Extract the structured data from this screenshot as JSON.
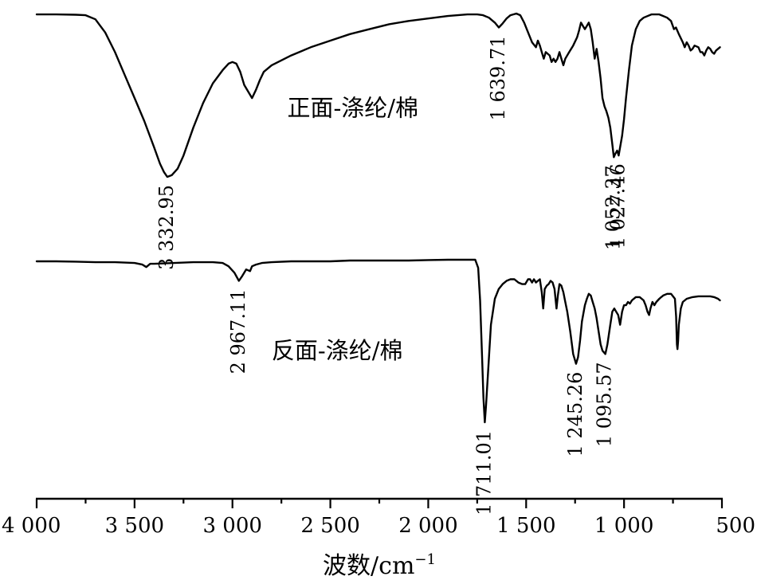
{
  "chart_data": {
    "type": "line",
    "xlabel_main": "波数/cm",
    "xlabel_sup": "−1",
    "xlim": [
      4000,
      500
    ],
    "x_reversed": true,
    "x_ticks": [
      4000,
      3500,
      3000,
      2500,
      2000,
      1500,
      1000,
      500
    ],
    "x_tick_labels": [
      "4 000",
      "3 500",
      "3 000",
      "2 500",
      "2 000",
      "1 500",
      "1 000",
      "500"
    ],
    "y_axis_shown": false,
    "grid": false,
    "series": [
      {
        "name": "正面-涤纶/棉",
        "label_at": {
          "x": 2720,
          "y": 0.42
        },
        "points": [
          [
            4000,
            0.99
          ],
          [
            3900,
            0.99
          ],
          [
            3800,
            0.988
          ],
          [
            3750,
            0.985
          ],
          [
            3700,
            0.96
          ],
          [
            3650,
            0.88
          ],
          [
            3600,
            0.76
          ],
          [
            3550,
            0.62
          ],
          [
            3500,
            0.48
          ],
          [
            3450,
            0.34
          ],
          [
            3400,
            0.18
          ],
          [
            3370,
            0.08
          ],
          [
            3350,
            0.03
          ],
          [
            3332.95,
            0.0
          ],
          [
            3310,
            0.01
          ],
          [
            3280,
            0.05
          ],
          [
            3250,
            0.13
          ],
          [
            3200,
            0.3
          ],
          [
            3150,
            0.45
          ],
          [
            3100,
            0.57
          ],
          [
            3050,
            0.65
          ],
          [
            3020,
            0.69
          ],
          [
            3000,
            0.7
          ],
          [
            2980,
            0.69
          ],
          [
            2960,
            0.64
          ],
          [
            2940,
            0.56
          ],
          [
            2920,
            0.52
          ],
          [
            2900,
            0.48
          ],
          [
            2880,
            0.53
          ],
          [
            2860,
            0.59
          ],
          [
            2840,
            0.64
          ],
          [
            2800,
            0.68
          ],
          [
            2700,
            0.74
          ],
          [
            2600,
            0.79
          ],
          [
            2500,
            0.83
          ],
          [
            2400,
            0.87
          ],
          [
            2300,
            0.9
          ],
          [
            2200,
            0.93
          ],
          [
            2100,
            0.95
          ],
          [
            2000,
            0.965
          ],
          [
            1900,
            0.98
          ],
          [
            1800,
            0.99
          ],
          [
            1750,
            0.99
          ],
          [
            1720,
            0.985
          ],
          [
            1690,
            0.97
          ],
          [
            1660,
            0.94
          ],
          [
            1639.71,
            0.91
          ],
          [
            1620,
            0.935
          ],
          [
            1600,
            0.965
          ],
          [
            1580,
            0.985
          ],
          [
            1550,
            0.995
          ],
          [
            1530,
            0.985
          ],
          [
            1510,
            0.94
          ],
          [
            1490,
            0.88
          ],
          [
            1470,
            0.82
          ],
          [
            1450,
            0.79
          ],
          [
            1440,
            0.83
          ],
          [
            1430,
            0.8
          ],
          [
            1420,
            0.76
          ],
          [
            1410,
            0.72
          ],
          [
            1400,
            0.76
          ],
          [
            1380,
            0.74
          ],
          [
            1370,
            0.7
          ],
          [
            1360,
            0.72
          ],
          [
            1350,
            0.7
          ],
          [
            1340,
            0.72
          ],
          [
            1330,
            0.76
          ],
          [
            1320,
            0.72
          ],
          [
            1310,
            0.68
          ],
          [
            1300,
            0.72
          ],
          [
            1280,
            0.76
          ],
          [
            1260,
            0.8
          ],
          [
            1240,
            0.85
          ],
          [
            1230,
            0.89
          ],
          [
            1220,
            0.94
          ],
          [
            1210,
            0.92
          ],
          [
            1200,
            0.9
          ],
          [
            1190,
            0.92
          ],
          [
            1180,
            0.94
          ],
          [
            1170,
            0.9
          ],
          [
            1160,
            0.82
          ],
          [
            1150,
            0.72
          ],
          [
            1140,
            0.78
          ],
          [
            1130,
            0.7
          ],
          [
            1120,
            0.6
          ],
          [
            1110,
            0.48
          ],
          [
            1100,
            0.43
          ],
          [
            1090,
            0.4
          ],
          [
            1080,
            0.36
          ],
          [
            1070,
            0.3
          ],
          [
            1060,
            0.2
          ],
          [
            1052.37,
            0.12
          ],
          [
            1045,
            0.14
          ],
          [
            1035,
            0.16
          ],
          [
            1027.46,
            0.13
          ],
          [
            1010,
            0.25
          ],
          [
            1000,
            0.35
          ],
          [
            990,
            0.48
          ],
          [
            975,
            0.65
          ],
          [
            960,
            0.8
          ],
          [
            940,
            0.9
          ],
          [
            920,
            0.95
          ],
          [
            900,
            0.97
          ],
          [
            860,
            0.99
          ],
          [
            820,
            0.99
          ],
          [
            800,
            0.98
          ],
          [
            780,
            0.97
          ],
          [
            760,
            0.95
          ],
          [
            745,
            0.9
          ],
          [
            735,
            0.91
          ],
          [
            720,
            0.87
          ],
          [
            700,
            0.82
          ],
          [
            690,
            0.79
          ],
          [
            680,
            0.82
          ],
          [
            670,
            0.8
          ],
          [
            660,
            0.77
          ],
          [
            650,
            0.78
          ],
          [
            640,
            0.8
          ],
          [
            620,
            0.79
          ],
          [
            610,
            0.76
          ],
          [
            600,
            0.76
          ],
          [
            590,
            0.74
          ],
          [
            580,
            0.77
          ],
          [
            570,
            0.79
          ],
          [
            560,
            0.78
          ],
          [
            550,
            0.76
          ],
          [
            540,
            0.75
          ],
          [
            530,
            0.77
          ],
          [
            520,
            0.78
          ],
          [
            510,
            0.79
          ]
        ],
        "annotations": [
          {
            "label": "3 332.95",
            "x": 3332.95
          },
          {
            "label": "1 639.71",
            "x": 1639.71
          },
          {
            "label": "1 052.37",
            "x": 1052.37
          },
          {
            "label": "1 027.46",
            "x": 1027.46
          }
        ]
      },
      {
        "name": "反面-涤纶/棉",
        "label_at": {
          "x": 2800,
          "y": 0.44
        },
        "points": [
          [
            4000,
            0.99
          ],
          [
            3900,
            0.99
          ],
          [
            3800,
            0.988
          ],
          [
            3700,
            0.985
          ],
          [
            3600,
            0.985
          ],
          [
            3500,
            0.98
          ],
          [
            3460,
            0.97
          ],
          [
            3440,
            0.955
          ],
          [
            3420,
            0.975
          ],
          [
            3400,
            0.975
          ],
          [
            3300,
            0.98
          ],
          [
            3200,
            0.985
          ],
          [
            3100,
            0.985
          ],
          [
            3050,
            0.98
          ],
          [
            3020,
            0.96
          ],
          [
            2990,
            0.92
          ],
          [
            2967.11,
            0.87
          ],
          [
            2950,
            0.9
          ],
          [
            2930,
            0.94
          ],
          [
            2910,
            0.93
          ],
          [
            2900,
            0.96
          ],
          [
            2880,
            0.97
          ],
          [
            2850,
            0.98
          ],
          [
            2800,
            0.985
          ],
          [
            2700,
            0.99
          ],
          [
            2600,
            0.99
          ],
          [
            2500,
            0.99
          ],
          [
            2400,
            0.995
          ],
          [
            2300,
            0.995
          ],
          [
            2200,
            0.995
          ],
          [
            2100,
            0.995
          ],
          [
            2000,
            0.998
          ],
          [
            1900,
            1.0
          ],
          [
            1800,
            1.0
          ],
          [
            1760,
            1.0
          ],
          [
            1745,
            0.95
          ],
          [
            1735,
            0.75
          ],
          [
            1725,
            0.4
          ],
          [
            1718,
            0.15
          ],
          [
            1711.01,
            0.0
          ],
          [
            1705,
            0.1
          ],
          [
            1695,
            0.3
          ],
          [
            1680,
            0.6
          ],
          [
            1660,
            0.76
          ],
          [
            1640,
            0.82
          ],
          [
            1620,
            0.85
          ],
          [
            1600,
            0.87
          ],
          [
            1580,
            0.88
          ],
          [
            1560,
            0.88
          ],
          [
            1540,
            0.86
          ],
          [
            1520,
            0.85
          ],
          [
            1505,
            0.85
          ],
          [
            1490,
            0.88
          ],
          [
            1480,
            0.88
          ],
          [
            1470,
            0.86
          ],
          [
            1460,
            0.88
          ],
          [
            1450,
            0.86
          ],
          [
            1440,
            0.87
          ],
          [
            1430,
            0.88
          ],
          [
            1420,
            0.8
          ],
          [
            1413,
            0.7
          ],
          [
            1405,
            0.82
          ],
          [
            1395,
            0.84
          ],
          [
            1385,
            0.85
          ],
          [
            1375,
            0.87
          ],
          [
            1365,
            0.86
          ],
          [
            1355,
            0.82
          ],
          [
            1345,
            0.7
          ],
          [
            1338,
            0.78
          ],
          [
            1330,
            0.85
          ],
          [
            1320,
            0.84
          ],
          [
            1310,
            0.8
          ],
          [
            1300,
            0.74
          ],
          [
            1290,
            0.68
          ],
          [
            1275,
            0.56
          ],
          [
            1260,
            0.42
          ],
          [
            1245.26,
            0.36
          ],
          [
            1235,
            0.4
          ],
          [
            1225,
            0.5
          ],
          [
            1215,
            0.62
          ],
          [
            1200,
            0.72
          ],
          [
            1190,
            0.76
          ],
          [
            1180,
            0.79
          ],
          [
            1170,
            0.78
          ],
          [
            1160,
            0.74
          ],
          [
            1150,
            0.7
          ],
          [
            1140,
            0.64
          ],
          [
            1130,
            0.56
          ],
          [
            1120,
            0.48
          ],
          [
            1110,
            0.44
          ],
          [
            1095.57,
            0.42
          ],
          [
            1085,
            0.48
          ],
          [
            1070,
            0.6
          ],
          [
            1060,
            0.68
          ],
          [
            1050,
            0.7
          ],
          [
            1040,
            0.68
          ],
          [
            1030,
            0.66
          ],
          [
            1020,
            0.6
          ],
          [
            1010,
            0.68
          ],
          [
            1000,
            0.72
          ],
          [
            990,
            0.72
          ],
          [
            980,
            0.74
          ],
          [
            970,
            0.73
          ],
          [
            960,
            0.75
          ],
          [
            940,
            0.77
          ],
          [
            920,
            0.77
          ],
          [
            900,
            0.75
          ],
          [
            890,
            0.72
          ],
          [
            880,
            0.68
          ],
          [
            872,
            0.66
          ],
          [
            865,
            0.7
          ],
          [
            855,
            0.74
          ],
          [
            845,
            0.72
          ],
          [
            835,
            0.74
          ],
          [
            820,
            0.76
          ],
          [
            810,
            0.77
          ],
          [
            800,
            0.78
          ],
          [
            780,
            0.79
          ],
          [
            760,
            0.79
          ],
          [
            740,
            0.76
          ],
          [
            734,
            0.65
          ],
          [
            730,
            0.48
          ],
          [
            727,
            0.45
          ],
          [
            724,
            0.5
          ],
          [
            720,
            0.6
          ],
          [
            710,
            0.7
          ],
          [
            700,
            0.74
          ],
          [
            680,
            0.76
          ],
          [
            650,
            0.77
          ],
          [
            620,
            0.775
          ],
          [
            590,
            0.775
          ],
          [
            560,
            0.775
          ],
          [
            540,
            0.77
          ],
          [
            520,
            0.76
          ],
          [
            510,
            0.75
          ]
        ],
        "annotations": [
          {
            "label": "2 967.11",
            "x": 2967.11
          },
          {
            "label": "1 711.01",
            "x": 1711.01
          },
          {
            "label": "1 245.26",
            "x": 1245.26
          },
          {
            "label": "1 095.57",
            "x": 1095.57
          }
        ]
      }
    ]
  }
}
